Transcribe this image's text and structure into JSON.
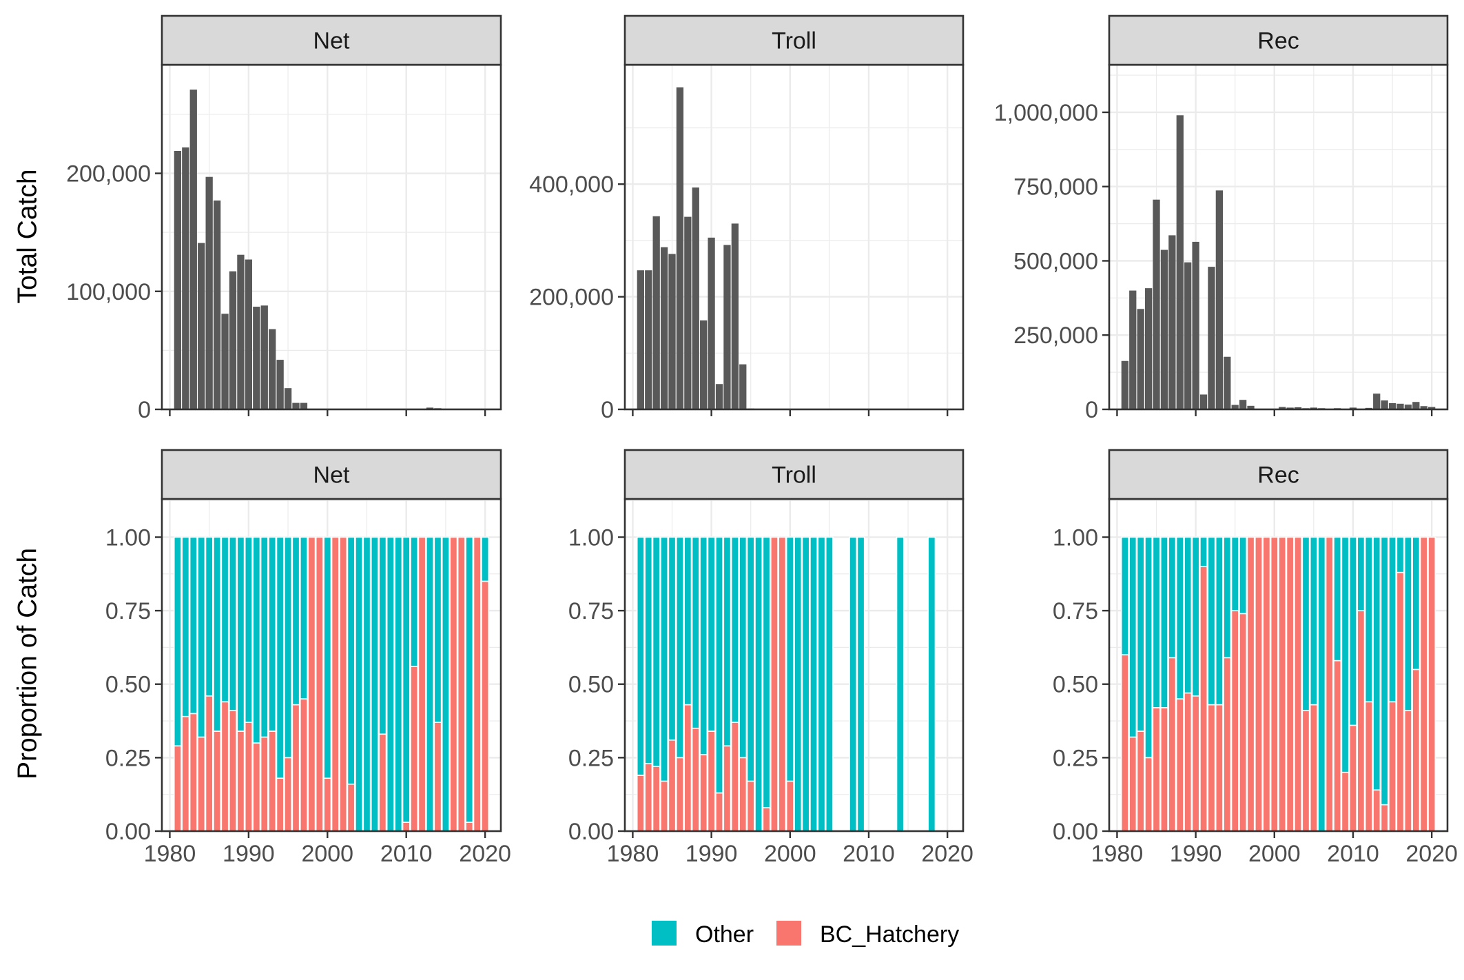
{
  "row_labels": [
    "Total Catch",
    "Proportion of Catch"
  ],
  "legend": {
    "items": [
      {
        "label": "Other",
        "color": "#00BFC4"
      },
      {
        "label": "BC_Hatchery",
        "color": "#F8766D"
      }
    ]
  },
  "colors": {
    "total_bar": "#595959",
    "other": "#00BFC4",
    "bc_hatchery": "#F8766D",
    "strip_bg": "#D9D9D9",
    "grid": "#EBEBEB",
    "panel_border": "#333333"
  },
  "chart_data": [
    {
      "type": "bar",
      "panel": "Net",
      "row": "Total Catch",
      "xlim": [
        1979,
        2022
      ],
      "x_ticks": [
        1980,
        1990,
        2000,
        2010,
        2020
      ],
      "ylim": [
        0,
        292000
      ],
      "y_ticks": [
        0,
        100000,
        200000
      ],
      "y_tick_labels": [
        "0",
        "100,000",
        "200,000"
      ],
      "x": [
        1981,
        1982,
        1983,
        1984,
        1985,
        1986,
        1987,
        1988,
        1989,
        1990,
        1991,
        1992,
        1993,
        1994,
        1995,
        1996,
        1997,
        2013,
        2014
      ],
      "values": [
        219000,
        222000,
        271000,
        141000,
        197000,
        177000,
        81000,
        117000,
        131000,
        127000,
        87000,
        88000,
        68000,
        42000,
        18000,
        5500,
        5500,
        1500,
        1000
      ]
    },
    {
      "type": "bar",
      "panel": "Troll",
      "row": "Total Catch",
      "xlim": [
        1979,
        2022
      ],
      "x_ticks": [
        1980,
        1990,
        2000,
        2010,
        2020
      ],
      "ylim": [
        0,
        612000
      ],
      "y_ticks": [
        0,
        200000,
        400000
      ],
      "y_tick_labels": [
        "0",
        "200,000",
        "400,000"
      ],
      "x": [
        1981,
        1982,
        1983,
        1984,
        1985,
        1986,
        1987,
        1988,
        1989,
        1990,
        1991,
        1992,
        1993,
        1994,
        1995,
        2018
      ],
      "values": [
        247000,
        247000,
        343000,
        288000,
        276000,
        572000,
        342000,
        394000,
        158000,
        305000,
        45000,
        292000,
        330000,
        80000,
        1500,
        1000
      ]
    },
    {
      "type": "bar",
      "panel": "Rec",
      "row": "Total Catch",
      "xlim": [
        1979,
        2022
      ],
      "x_ticks": [
        1980,
        1990,
        2000,
        2010,
        2020
      ],
      "ylim": [
        0,
        1160000
      ],
      "y_ticks": [
        0,
        250000,
        500000,
        750000,
        1000000
      ],
      "y_tick_labels": [
        "0",
        "250,000",
        "500,000",
        "750,000",
        "1,000,000"
      ],
      "x": [
        1981,
        1982,
        1983,
        1984,
        1985,
        1986,
        1987,
        1988,
        1989,
        1990,
        1991,
        1992,
        1993,
        1994,
        1995,
        1996,
        1997,
        2001,
        2002,
        2003,
        2004,
        2005,
        2006,
        2008,
        2010,
        2012,
        2013,
        2014,
        2015,
        2016,
        2017,
        2018,
        2019,
        2020
      ],
      "values": [
        163000,
        400000,
        338000,
        408000,
        706000,
        537000,
        586000,
        990000,
        495000,
        564000,
        50000,
        480000,
        737000,
        177000,
        15000,
        32000,
        12000,
        8000,
        6000,
        7000,
        4000,
        6000,
        4000,
        4000,
        6000,
        5000,
        53000,
        30000,
        21000,
        19000,
        16000,
        25000,
        11000,
        8000
      ]
    },
    {
      "type": "bar",
      "stacked": true,
      "panel": "Net",
      "row": "Proportion of Catch",
      "xlim": [
        1979,
        2022
      ],
      "x_ticks": [
        1980,
        1990,
        2000,
        2010,
        2020
      ],
      "ylim": [
        0,
        1.13
      ],
      "y_ticks": [
        0,
        0.25,
        0.5,
        0.75,
        1
      ],
      "y_tick_labels": [
        "0.00",
        "0.25",
        "0.50",
        "0.75",
        "1.00"
      ],
      "x": [
        1981,
        1982,
        1983,
        1984,
        1985,
        1986,
        1987,
        1988,
        1989,
        1990,
        1991,
        1992,
        1993,
        1994,
        1995,
        1996,
        1997,
        1998,
        1999,
        2000,
        2001,
        2002,
        2003,
        2004,
        2005,
        2006,
        2007,
        2008,
        2009,
        2010,
        2011,
        2012,
        2013,
        2014,
        2015,
        2016,
        2017,
        2018,
        2019,
        2020
      ],
      "series": [
        {
          "name": "BC_Hatchery",
          "values": [
            0.29,
            0.39,
            0.4,
            0.32,
            0.46,
            0.34,
            0.44,
            0.41,
            0.34,
            0.37,
            0.3,
            0.32,
            0.34,
            0.18,
            0.25,
            0.43,
            0.45,
            1.0,
            1.0,
            0.18,
            1.0,
            1.0,
            0.16,
            0.0,
            0.0,
            0.0,
            0.33,
            0.0,
            0.0,
            0.03,
            0.56,
            1.0,
            0.0,
            0.37,
            0.0,
            1.0,
            1.0,
            0.03,
            1.0,
            0.85
          ]
        },
        {
          "name": "Other",
          "values": [
            0.71,
            0.61,
            0.6,
            0.68,
            0.54,
            0.66,
            0.56,
            0.59,
            0.66,
            0.63,
            0.7,
            0.68,
            0.66,
            0.82,
            0.75,
            0.57,
            0.55,
            0.0,
            0.0,
            0.82,
            0.0,
            0.0,
            0.84,
            1.0,
            1.0,
            1.0,
            0.67,
            1.0,
            1.0,
            0.97,
            0.44,
            0.0,
            1.0,
            0.63,
            1.0,
            0.0,
            0.0,
            0.97,
            0.0,
            0.15
          ]
        }
      ]
    },
    {
      "type": "bar",
      "stacked": true,
      "panel": "Troll",
      "row": "Proportion of Catch",
      "xlim": [
        1979,
        2022
      ],
      "x_ticks": [
        1980,
        1990,
        2000,
        2010,
        2020
      ],
      "ylim": [
        0,
        1.13
      ],
      "y_ticks": [
        0,
        0.25,
        0.5,
        0.75,
        1
      ],
      "y_tick_labels": [
        "0.00",
        "0.25",
        "0.50",
        "0.75",
        "1.00"
      ],
      "x": [
        1981,
        1982,
        1983,
        1984,
        1985,
        1986,
        1987,
        1988,
        1989,
        1990,
        1991,
        1992,
        1993,
        1994,
        1995,
        1996,
        1997,
        1998,
        1999,
        2000,
        2001,
        2002,
        2003,
        2004,
        2005,
        2008,
        2009,
        2014,
        2018
      ],
      "series": [
        {
          "name": "BC_Hatchery",
          "values": [
            0.19,
            0.23,
            0.22,
            0.17,
            0.31,
            0.25,
            0.43,
            0.35,
            0.26,
            0.34,
            0.13,
            0.29,
            0.37,
            0.25,
            0.17,
            0.0,
            0.08,
            1.0,
            1.0,
            0.17,
            0.0,
            0.0,
            0.0,
            0.0,
            0.0,
            0.0,
            0.0,
            0.0,
            0.0
          ]
        },
        {
          "name": "Other",
          "values": [
            0.81,
            0.77,
            0.78,
            0.83,
            0.69,
            0.75,
            0.57,
            0.65,
            0.74,
            0.66,
            0.87,
            0.71,
            0.63,
            0.75,
            0.83,
            1.0,
            0.92,
            0.0,
            0.0,
            0.83,
            1.0,
            1.0,
            1.0,
            1.0,
            1.0,
            1.0,
            1.0,
            1.0,
            1.0
          ]
        }
      ]
    },
    {
      "type": "bar",
      "stacked": true,
      "panel": "Rec",
      "row": "Proportion of Catch",
      "xlim": [
        1979,
        2022
      ],
      "x_ticks": [
        1980,
        1990,
        2000,
        2010,
        2020
      ],
      "ylim": [
        0,
        1.13
      ],
      "y_ticks": [
        0,
        0.25,
        0.5,
        0.75,
        1
      ],
      "y_tick_labels": [
        "0.00",
        "0.25",
        "0.50",
        "0.75",
        "1.00"
      ],
      "x": [
        1981,
        1982,
        1983,
        1984,
        1985,
        1986,
        1987,
        1988,
        1989,
        1990,
        1991,
        1992,
        1993,
        1994,
        1995,
        1996,
        1997,
        1998,
        1999,
        2000,
        2001,
        2002,
        2003,
        2004,
        2005,
        2006,
        2007,
        2008,
        2009,
        2010,
        2011,
        2012,
        2013,
        2014,
        2015,
        2016,
        2017,
        2018,
        2019,
        2020
      ],
      "series": [
        {
          "name": "BC_Hatchery",
          "values": [
            0.6,
            0.32,
            0.34,
            0.25,
            0.42,
            0.42,
            0.59,
            0.45,
            0.47,
            0.46,
            0.9,
            0.43,
            0.43,
            0.59,
            0.75,
            0.74,
            1.0,
            1.0,
            1.0,
            1.0,
            1.0,
            1.0,
            1.0,
            0.41,
            0.43,
            0.0,
            1.0,
            0.58,
            0.2,
            0.36,
            0.75,
            0.44,
            0.14,
            0.09,
            0.44,
            0.88,
            0.41,
            0.55,
            1.0,
            1.0
          ]
        },
        {
          "name": "Other",
          "values": [
            0.4,
            0.68,
            0.66,
            0.75,
            0.58,
            0.58,
            0.41,
            0.55,
            0.53,
            0.54,
            0.1,
            0.57,
            0.57,
            0.41,
            0.25,
            0.26,
            0.0,
            0.0,
            0.0,
            0.0,
            0.0,
            0.0,
            0.0,
            0.59,
            0.57,
            1.0,
            0.0,
            0.42,
            0.8,
            0.64,
            0.25,
            0.56,
            0.86,
            0.91,
            0.56,
            0.12,
            0.59,
            0.45,
            0.0,
            0.0
          ]
        }
      ]
    }
  ]
}
